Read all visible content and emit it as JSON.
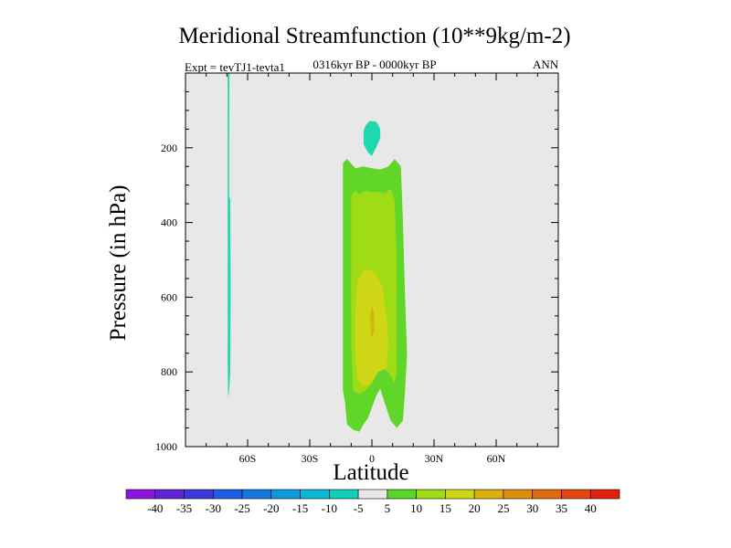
{
  "chart_data": {
    "type": "contour",
    "title": "Meridional Streamfunction (10**9kg/m-2)",
    "subtitle": "0316kyr BP - 0000kyr BP",
    "left_label": "Expt = tevTJ1-tevta1",
    "right_label": "ANN",
    "xlabel": "Latitude",
    "ylabel": "Pressure (in hPa)",
    "xlim": [
      -90,
      90
    ],
    "ylim": [
      1000,
      0
    ],
    "x_ticks": [
      {
        "value": -60,
        "label": "60S"
      },
      {
        "value": -30,
        "label": "30S"
      },
      {
        "value": 0,
        "label": "0"
      },
      {
        "value": 30,
        "label": "30N"
      },
      {
        "value": 60,
        "label": "60N"
      }
    ],
    "y_ticks": [
      {
        "value": 200,
        "label": "200"
      },
      {
        "value": 400,
        "label": "400"
      },
      {
        "value": 600,
        "label": "600"
      },
      {
        "value": 800,
        "label": "800"
      },
      {
        "value": 1000,
        "label": "1000"
      }
    ],
    "regions": [
      {
        "name": "contour-region-5-10",
        "level": 5,
        "color": "#5fd628",
        "points": [
          [
            -14,
            240
          ],
          [
            -12,
            230
          ],
          [
            -8,
            255
          ],
          [
            -4,
            250
          ],
          [
            0,
            255
          ],
          [
            4,
            258
          ],
          [
            8,
            250
          ],
          [
            11,
            230
          ],
          [
            14,
            250
          ],
          [
            15,
            400
          ],
          [
            16,
            600
          ],
          [
            17,
            750
          ],
          [
            16,
            850
          ],
          [
            15,
            930
          ],
          [
            12,
            950
          ],
          [
            9,
            930
          ],
          [
            6,
            880
          ],
          [
            4,
            845
          ],
          [
            2,
            865
          ],
          [
            0,
            895
          ],
          [
            -2,
            925
          ],
          [
            -4,
            940
          ],
          [
            -6,
            960
          ],
          [
            -9,
            955
          ],
          [
            -12,
            940
          ],
          [
            -13,
            880
          ],
          [
            -14,
            850
          ],
          [
            -14,
            700
          ],
          [
            -14,
            500
          ],
          [
            -14,
            350
          ]
        ]
      },
      {
        "name": "contour-region-10-15",
        "level": 10,
        "color": "#a0dc16",
        "points": [
          [
            -10,
            330
          ],
          [
            -8,
            315
          ],
          [
            -6,
            325
          ],
          [
            -3,
            315
          ],
          [
            0,
            318
          ],
          [
            3,
            318
          ],
          [
            6,
            322
          ],
          [
            9,
            310
          ],
          [
            11,
            340
          ],
          [
            12,
            500
          ],
          [
            12,
            700
          ],
          [
            12,
            800
          ],
          [
            11,
            830
          ],
          [
            8,
            800
          ],
          [
            5,
            790
          ],
          [
            3,
            790
          ],
          [
            0,
            830
          ],
          [
            -3,
            850
          ],
          [
            -6,
            860
          ],
          [
            -9,
            850
          ],
          [
            -10,
            720
          ],
          [
            -10,
            500
          ]
        ]
      },
      {
        "name": "contour-region-15-20",
        "level": 15,
        "color": "#cfd616",
        "points": [
          [
            -7,
            560
          ],
          [
            -4,
            530
          ],
          [
            -1,
            525
          ],
          [
            2,
            540
          ],
          [
            5,
            570
          ],
          [
            7,
            650
          ],
          [
            8,
            720
          ],
          [
            7,
            790
          ],
          [
            3,
            800
          ],
          [
            0,
            830
          ],
          [
            -4,
            840
          ],
          [
            -7,
            820
          ],
          [
            -8,
            750
          ],
          [
            -8,
            640
          ]
        ]
      },
      {
        "name": "contour-region-20-25",
        "level": 20,
        "color": "#d4b410",
        "points": [
          [
            0,
            620
          ],
          [
            1.2,
            650
          ],
          [
            1,
            690
          ],
          [
            0,
            710
          ],
          [
            -0.6,
            690
          ],
          [
            -0.8,
            650
          ]
        ]
      },
      {
        "name": "contour-region-minus10-minus5",
        "level": -10,
        "color": "#1ed8b0",
        "points": [
          [
            -3,
            140
          ],
          [
            -1,
            128
          ],
          [
            2,
            130
          ],
          [
            3,
            138
          ],
          [
            4,
            150
          ],
          [
            4,
            175
          ],
          [
            2,
            200
          ],
          [
            0,
            222
          ],
          [
            -2,
            212
          ],
          [
            -4,
            190
          ],
          [
            -4,
            155
          ]
        ]
      },
      {
        "name": "contour-region-sh-strip",
        "level": -10,
        "color": "#1ed8b0",
        "points": [
          [
            -69.6,
            0
          ],
          [
            -68.8,
            0
          ],
          [
            -68.9,
            200
          ],
          [
            -68.9,
            330
          ],
          [
            -68.4,
            340
          ],
          [
            -68.2,
            580
          ],
          [
            -68.4,
            800
          ],
          [
            -68.9,
            850
          ],
          [
            -69.4,
            870
          ],
          [
            -69.6,
            780
          ],
          [
            -69.6,
            400
          ]
        ]
      }
    ],
    "colorbar": {
      "labels": [
        "-40",
        "-35",
        "-30",
        "-25",
        "-20",
        "-15",
        "-10",
        "-5",
        "5",
        "10",
        "15",
        "20",
        "25",
        "30",
        "35",
        "40"
      ],
      "colors": [
        "#8b16de",
        "#6025d3",
        "#3a39d9",
        "#1f5ce5",
        "#1577e0",
        "#0f9ae0",
        "#0cb6d8",
        "#0ed0ba",
        "#e8e8e8",
        "#5ad628",
        "#9edc17",
        "#cdd616",
        "#dcb010",
        "#de8e0e",
        "#e16a10",
        "#e4460e",
        "#e0220c"
      ]
    }
  }
}
